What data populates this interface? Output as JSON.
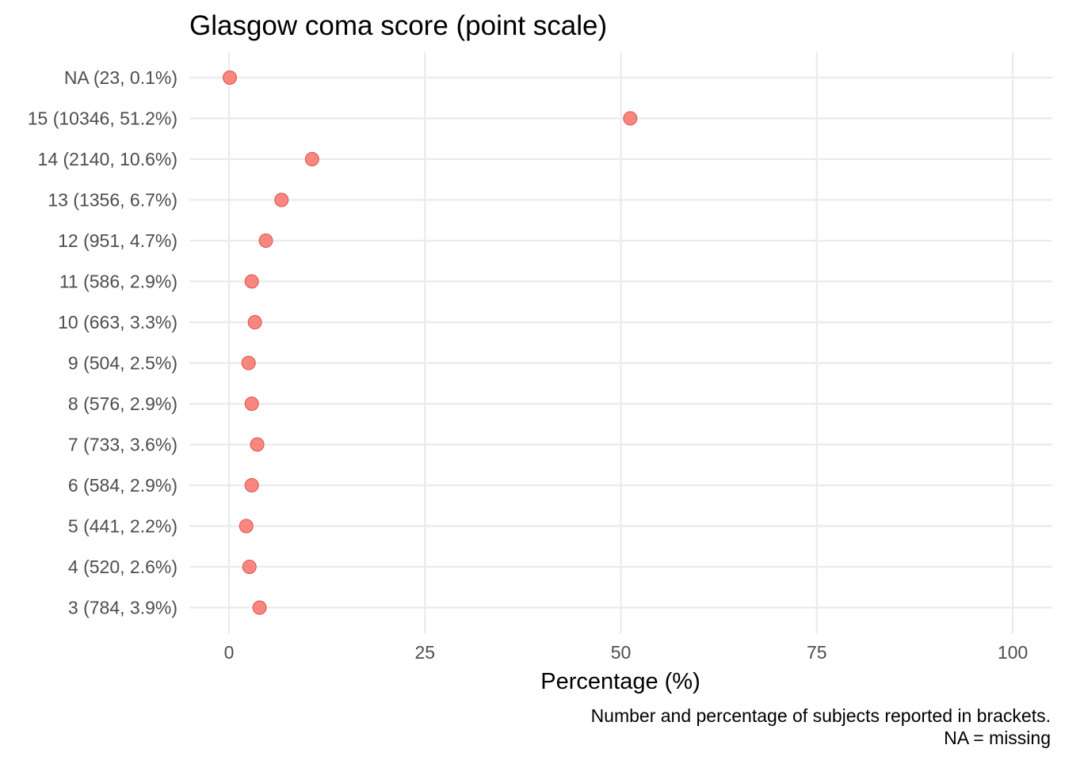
{
  "chart_data": {
    "type": "scatter",
    "title": "Glasgow coma score (point scale)",
    "xlabel": "Percentage (%)",
    "ylabel": "",
    "xlim": [
      0,
      100
    ],
    "x_ticks": [
      0,
      25,
      50,
      75,
      100
    ],
    "grid": true,
    "legend": "none",
    "caption_lines": [
      "Number and percentage of subjects reported in brackets.",
      "NA = missing"
    ],
    "point_color": "#F8766D",
    "categories": [
      "NA (23, 0.1%)",
      "15 (10346, 51.2%)",
      "14 (2140, 10.6%)",
      "13 (1356, 6.7%)",
      "12 (951, 4.7%)",
      "11 (586, 2.9%)",
      "10 (663, 3.3%)",
      "9 (504, 2.5%)",
      "8 (576, 2.9%)",
      "7 (733, 3.6%)",
      "6 (584, 2.9%)",
      "5 (441, 2.2%)",
      "4 (520, 2.6%)",
      "3 (784, 3.9%)"
    ],
    "values": [
      0.1,
      51.2,
      10.6,
      6.7,
      4.7,
      2.9,
      3.3,
      2.5,
      2.9,
      3.6,
      2.9,
      2.2,
      2.6,
      3.9
    ]
  }
}
